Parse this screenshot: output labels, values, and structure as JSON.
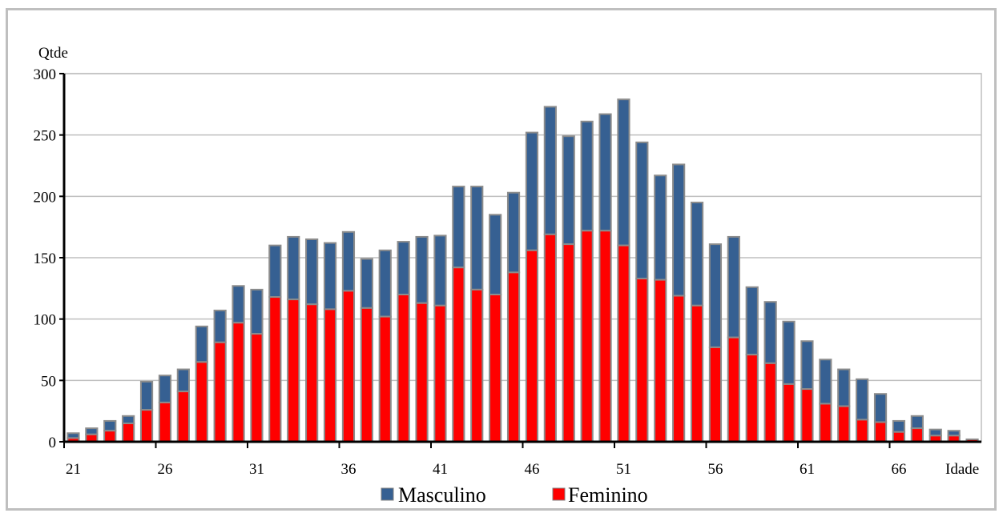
{
  "chart_data": {
    "type": "bar",
    "stacked": true,
    "ylabel": "Qtde",
    "xlabel": "Idade",
    "ylim": [
      0,
      300
    ],
    "yticks": [
      0,
      50,
      100,
      150,
      200,
      250,
      300
    ],
    "xticks": [
      21,
      26,
      31,
      36,
      41,
      46,
      51,
      56,
      61,
      66
    ],
    "grid": true,
    "legend_position": "bottom",
    "categories": [
      21,
      22,
      23,
      24,
      25,
      26,
      27,
      28,
      29,
      30,
      31,
      32,
      33,
      34,
      35,
      36,
      37,
      38,
      39,
      40,
      41,
      42,
      43,
      44,
      45,
      46,
      47,
      48,
      49,
      50,
      51,
      52,
      53,
      54,
      55,
      56,
      57,
      58,
      59,
      60,
      61,
      62,
      63,
      64,
      65,
      66,
      67,
      68,
      69,
      70
    ],
    "series": [
      {
        "name": "Feminino",
        "color": "#ff0000",
        "values": [
          3,
          6,
          9,
          15,
          26,
          32,
          41,
          65,
          81,
          97,
          88,
          118,
          116,
          112,
          108,
          123,
          109,
          102,
          120,
          113,
          111,
          142,
          124,
          120,
          138,
          156,
          169,
          161,
          172,
          172,
          160,
          133,
          132,
          119,
          111,
          77,
          85,
          71,
          64,
          47,
          43,
          31,
          29,
          18,
          16,
          8,
          11,
          5,
          5,
          2
        ]
      },
      {
        "name": "Masculino",
        "color": "#366092",
        "values": [
          4,
          5,
          8,
          6,
          23,
          22,
          18,
          29,
          26,
          30,
          36,
          42,
          51,
          53,
          54,
          48,
          40,
          54,
          43,
          54,
          57,
          66,
          84,
          65,
          65,
          96,
          104,
          88,
          89,
          95,
          119,
          111,
          85,
          107,
          84,
          84,
          82,
          55,
          50,
          51,
          39,
          36,
          30,
          33,
          23,
          9,
          10,
          5,
          4,
          0
        ]
      }
    ]
  }
}
